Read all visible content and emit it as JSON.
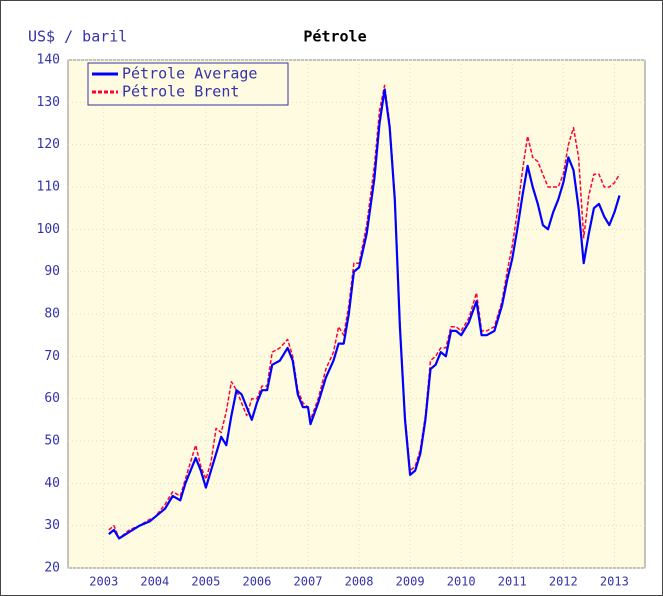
{
  "chart_data": {
    "type": "line",
    "title": "Pétrole",
    "ylabel": "US$ / baril",
    "x": [
      2003.1,
      2003.2,
      2003.3,
      2003.5,
      2003.7,
      2003.9,
      2004.0,
      2004.2,
      2004.35,
      2004.5,
      2004.6,
      2004.8,
      2004.9,
      2005.0,
      2005.1,
      2005.2,
      2005.3,
      2005.4,
      2005.5,
      2005.6,
      2005.7,
      2005.8,
      2005.9,
      2006.0,
      2006.1,
      2006.2,
      2006.3,
      2006.45,
      2006.6,
      2006.7,
      2006.8,
      2006.9,
      2007.0,
      2007.05,
      2007.2,
      2007.35,
      2007.5,
      2007.6,
      2007.7,
      2007.8,
      2007.9,
      2008.0,
      2008.15,
      2008.3,
      2008.4,
      2008.5,
      2008.6,
      2008.7,
      2008.8,
      2008.9,
      2009.0,
      2009.1,
      2009.2,
      2009.3,
      2009.4,
      2009.5,
      2009.6,
      2009.7,
      2009.8,
      2009.9,
      2010.0,
      2010.15,
      2010.3,
      2010.4,
      2010.5,
      2010.65,
      2010.8,
      2010.9,
      2011.0,
      2011.1,
      2011.2,
      2011.3,
      2011.4,
      2011.5,
      2011.6,
      2011.7,
      2011.8,
      2011.9,
      2012.0,
      2012.1,
      2012.2,
      2012.3,
      2012.4,
      2012.5,
      2012.6,
      2012.7,
      2012.8,
      2012.9,
      2013.0,
      2013.1
    ],
    "series": [
      {
        "name": "Pétrole Average",
        "color": "#0000ff",
        "dash": false,
        "values": [
          28,
          29,
          27,
          28.5,
          30,
          31,
          32,
          34,
          37,
          36,
          40,
          46,
          43,
          39,
          43,
          47,
          51,
          49,
          56,
          62,
          61,
          58,
          55,
          59,
          62,
          62,
          68,
          69,
          72,
          69,
          61,
          58,
          58,
          54,
          59,
          65,
          69,
          73,
          73,
          80,
          90,
          91,
          99,
          112,
          125,
          133,
          124,
          107,
          77,
          55,
          42,
          43,
          47,
          55,
          67,
          68,
          71,
          70,
          76,
          76,
          75,
          78,
          83,
          75,
          75,
          76,
          82,
          88,
          93,
          100,
          108,
          115,
          110,
          106,
          101,
          100,
          104,
          107,
          111,
          117,
          114,
          105,
          92,
          99,
          105,
          106,
          103,
          101,
          104,
          108
        ]
      },
      {
        "name": "Pétrole Brent",
        "color": "#ff0033",
        "dash": true,
        "values": [
          29,
          30,
          27,
          29,
          30,
          31.5,
          32,
          35,
          38,
          37,
          41,
          49,
          44,
          41,
          45,
          53,
          52,
          57,
          64,
          62,
          59,
          56,
          60,
          60,
          63,
          63,
          71,
          72,
          74,
          70,
          62,
          59,
          58,
          55,
          60,
          67,
          71,
          77,
          75,
          82,
          92,
          92,
          101,
          115,
          128,
          134,
          125,
          108,
          78,
          56,
          43,
          44,
          48,
          56,
          69,
          70,
          72,
          72,
          77,
          77,
          76,
          79,
          85,
          76,
          76,
          77,
          83,
          90,
          96,
          104,
          114,
          122,
          117,
          116,
          113,
          110,
          110,
          110,
          113,
          120,
          124,
          117,
          98,
          108,
          113,
          113,
          110,
          110,
          111,
          113
        ]
      }
    ],
    "xlim": [
      2002.3,
      2013.6
    ],
    "xticks": [
      2003,
      2004,
      2005,
      2006,
      2007,
      2008,
      2009,
      2010,
      2011,
      2012,
      2013
    ],
    "ylim": [
      20,
      140
    ],
    "yticks": [
      20,
      30,
      40,
      50,
      60,
      70,
      80,
      90,
      100,
      110,
      120,
      130,
      140
    ],
    "grid": true,
    "legend": "upper left"
  }
}
